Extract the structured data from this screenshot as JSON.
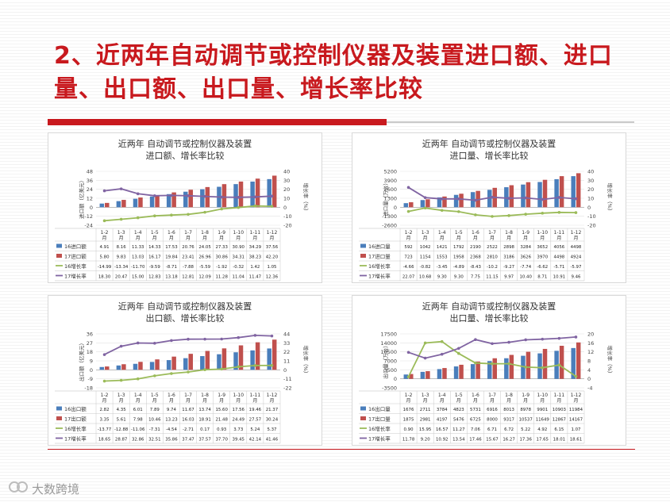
{
  "slide": {
    "title": "2、近两年自动调节或控制仪器及装置进口额、进口量、出口额、出口量、增长率比较",
    "watermark": "大数跨境"
  },
  "colors": {
    "series16": "#4a7ebb",
    "series17": "#c0504d",
    "growth16": "#9bbb59",
    "growth17": "#8064a2",
    "accent": "#c8191e"
  },
  "chart_data": [
    {
      "type": "bar",
      "title": [
        "近两年 自动调节或控制仪器及装置",
        "进口额、增长率比较"
      ],
      "ylabel": "进口额（亿美元）",
      "y2label": "增长率（%）",
      "categories": [
        "1-2月",
        "1-3月",
        "1-4月",
        "1-5月",
        "1-6月",
        "1-7月",
        "1-8月",
        "1-9月",
        "1-10月",
        "1-11月",
        "1-12月"
      ],
      "ylim": [
        -24,
        48
      ],
      "yticks": [
        "48",
        "36",
        "24",
        "12",
        "0",
        "-12",
        "-24"
      ],
      "y2lim": [
        -20,
        40
      ],
      "y2ticks": [
        "40",
        "30",
        "20",
        "10",
        "0",
        "-10",
        "-20"
      ],
      "series": [
        {
          "name": "16进口额",
          "kind": "bar",
          "values": [
            4.91,
            8.16,
            11.33,
            14.33,
            17.53,
            20.76,
            24.05,
            27.33,
            30.9,
            34.29,
            37.56
          ],
          "labels": [
            "4.91",
            "8.16",
            "11.33",
            "14.33",
            "17.53",
            "20.76",
            "24.05",
            "27.33",
            "30.90",
            "34.29",
            "37.56"
          ]
        },
        {
          "name": "17进口额",
          "kind": "bar",
          "values": [
            5.8,
            9.83,
            13.03,
            16.17,
            19.84,
            23.41,
            26.96,
            30.86,
            34.31,
            38.23,
            42.2
          ],
          "labels": [
            "5.80",
            "9.83",
            "13.03",
            "16.17",
            "19.84",
            "23.41",
            "26.96",
            "30.86",
            "34.31",
            "38.23",
            "42.20"
          ]
        },
        {
          "name": "16增长率",
          "kind": "line",
          "values": [
            -14.99,
            -13.34,
            -11.7,
            -9.59,
            -8.71,
            -7.88,
            -5.59,
            -1.92,
            -0.32,
            1.42,
            1.05
          ],
          "labels": [
            "-14.99",
            "-13.34",
            "-11.70",
            "-9.59",
            "-8.71",
            "-7.88",
            "-5.59",
            "-1.92",
            "-0.32",
            "1.42",
            "1.05"
          ]
        },
        {
          "name": "17增长率",
          "kind": "line",
          "values": [
            18.3,
            20.47,
            15.0,
            12.83,
            13.18,
            12.81,
            12.09,
            11.28,
            11.04,
            11.47,
            12.36
          ],
          "labels": [
            "18.30",
            "20.47",
            "15.00",
            "12.83",
            "13.18",
            "12.81",
            "12.09",
            "11.28",
            "11.04",
            "11.47",
            "12.36"
          ]
        }
      ]
    },
    {
      "type": "bar",
      "title": [
        "近两年 自动调节或控制仪器及装置",
        "进口量、增长率比较"
      ],
      "ylabel": "进口量（万台）",
      "y2label": "增长率（%）",
      "categories": [
        "1-2月",
        "1-3月",
        "1-4月",
        "1-5月",
        "1-6月",
        "1-7月",
        "1-8月",
        "1-9月",
        "1-10月",
        "1-11月",
        "1-12月"
      ],
      "ylim": [
        -2600,
        5200
      ],
      "yticks": [
        "5200",
        "3900",
        "2600",
        "1300",
        "0",
        "-1300",
        "-2600"
      ],
      "y2lim": [
        -20,
        40
      ],
      "y2ticks": [
        "40",
        "30",
        "20",
        "10",
        "0",
        "-10",
        "-20"
      ],
      "series": [
        {
          "name": "16进口量",
          "kind": "bar",
          "values": [
            592,
            1042,
            1421,
            1792,
            2190,
            2522,
            2898,
            3284,
            3652,
            4056,
            4498
          ],
          "labels": [
            "592",
            "1042",
            "1421",
            "1792",
            "2190",
            "2522",
            "2898",
            "3284",
            "3652",
            "4056",
            "4498"
          ]
        },
        {
          "name": "17进口量",
          "kind": "bar",
          "values": [
            723,
            1154,
            1553,
            1958,
            2368,
            2810,
            3186,
            3626,
            3970,
            4498,
            4924
          ],
          "labels": [
            "723",
            "1154",
            "1553",
            "1958",
            "2368",
            "2810",
            "3186",
            "3626",
            "3970",
            "4498",
            "4924"
          ]
        },
        {
          "name": "16增长率",
          "kind": "line",
          "values": [
            -4.66,
            -0.82,
            -3.45,
            -4.89,
            -8.43,
            -10.2,
            -9.27,
            -7.74,
            -6.62,
            -5.71,
            -5.97
          ],
          "labels": [
            "-4.66",
            "-0.82",
            "-3.45",
            "-4.89",
            "-8.43",
            "-10.2",
            "-9.27",
            "-7.74",
            "-6.62",
            "-5.71",
            "-5.97"
          ]
        },
        {
          "name": "17增长率",
          "kind": "line",
          "values": [
            22.07,
            10.68,
            9.3,
            9.3,
            7.75,
            11.15,
            9.97,
            10.4,
            8.71,
            10.91,
            9.46
          ],
          "labels": [
            "22.07",
            "10.68",
            "9.30",
            "9.30",
            "7.75",
            "11.15",
            "9.97",
            "10.40",
            "8.71",
            "10.91",
            "9.46"
          ]
        }
      ]
    },
    {
      "type": "bar",
      "title": [
        "近两年 自动调节或控制仪器及装置",
        "出口额、增长率比较"
      ],
      "ylabel": "出口额（亿美元）",
      "y2label": "增长率（%）",
      "categories": [
        "1-2月",
        "1-3月",
        "1-4月",
        "1-5月",
        "1-6月",
        "1-7月",
        "1-8月",
        "1-9月",
        "1-10月",
        "1-11月",
        "1-12月"
      ],
      "ylim": [
        -18,
        36
      ],
      "yticks": [
        "36",
        "27",
        "18",
        "9",
        "0",
        "-9",
        "-18"
      ],
      "y2lim": [
        -22,
        44
      ],
      "y2ticks": [
        "44",
        "33",
        "22",
        "11",
        "0",
        "-11",
        "-22"
      ],
      "series": [
        {
          "name": "16出口额",
          "kind": "bar",
          "values": [
            2.82,
            4.35,
            6.01,
            7.89,
            9.74,
            11.67,
            13.74,
            15.6,
            17.56,
            19.46,
            21.37
          ],
          "labels": [
            "2.82",
            "4.35",
            "6.01",
            "7.89",
            "9.74",
            "11.67",
            "13.74",
            "15.60",
            "17.56",
            "19.46",
            "21.37"
          ]
        },
        {
          "name": "17出口额",
          "kind": "bar",
          "values": [
            3.35,
            5.61,
            7.98,
            10.46,
            13.23,
            16.03,
            18.91,
            21.48,
            24.49,
            27.57,
            30.24
          ],
          "labels": [
            "3.35",
            "5.61",
            "7.98",
            "10.46",
            "13.23",
            "16.03",
            "18.91",
            "21.48",
            "24.49",
            "27.57",
            "30.24"
          ]
        },
        {
          "name": "16增长率",
          "kind": "line",
          "values": [
            -13.77,
            -12.88,
            -11.06,
            -7.31,
            -4.54,
            -2.71,
            0.17,
            0.93,
            3.73,
            5.24,
            5.37
          ],
          "labels": [
            "-13.77",
            "-12.88",
            "-11.06",
            "-7.31",
            "-4.54",
            "-2.71",
            "0.17",
            "0.93",
            "3.73",
            "5.24",
            "5.37"
          ]
        },
        {
          "name": "17增长率",
          "kind": "line",
          "values": [
            18.65,
            28.87,
            32.86,
            32.51,
            35.86,
            37.47,
            37.57,
            37.7,
            39.45,
            42.14,
            41.46
          ],
          "labels": [
            "18.65",
            "28.87",
            "32.86",
            "32.51",
            "35.86",
            "37.47",
            "37.57",
            "37.70",
            "39.45",
            "42.14",
            "41.46"
          ]
        }
      ]
    },
    {
      "type": "bar",
      "title": [
        "近两年 自动调节或控制仪器及装置",
        "出口量、增长率比较"
      ],
      "ylabel": "出口量（万台）",
      "y2label": "增长率（%）",
      "categories": [
        "1-2月",
        "1-3月",
        "1-4月",
        "1-5月",
        "1-6月",
        "1-7月",
        "1-8月",
        "1-9月",
        "1-10月",
        "1-11月",
        "1-12月"
      ],
      "ylim": [
        -3500,
        17500
      ],
      "yticks": [
        "17500",
        "14000",
        "10500",
        "7000",
        "3500",
        "0",
        "-3500"
      ],
      "y2lim": [
        -4,
        20
      ],
      "y2ticks": [
        "20",
        "16",
        "12",
        "8",
        "4",
        "0",
        "-4"
      ],
      "series": [
        {
          "name": "16出口量",
          "kind": "bar",
          "values": [
            1676,
            2711,
            3784,
            4823,
            5731,
            6916,
            8013,
            8978,
            9901,
            10903,
            11984
          ],
          "labels": [
            "1676",
            "2711",
            "3784",
            "4823",
            "5731",
            "6916",
            "8013",
            "8978",
            "9901",
            "10903",
            "11984"
          ]
        },
        {
          "name": "17出口量",
          "kind": "bar",
          "values": [
            1875,
            2981,
            4197,
            5476,
            6725,
            8000,
            9317,
            10537,
            11649,
            12867,
            14167
          ],
          "labels": [
            "1875",
            "2981",
            "4197",
            "5476",
            "6725",
            "8000",
            "9317",
            "10537",
            "11649",
            "12867",
            "14167"
          ]
        },
        {
          "name": "16增长率",
          "kind": "line",
          "values": [
            0.9,
            15.95,
            16.57,
            11.27,
            7.06,
            6.71,
            6.72,
            5.22,
            4.92,
            6.15,
            1.07
          ],
          "labels": [
            "0.90",
            "15.95",
            "16.57",
            "11.27",
            "7.06",
            "6.71",
            "6.72",
            "5.22",
            "4.92",
            "6.15",
            "1.07"
          ]
        },
        {
          "name": "17增长率",
          "kind": "line",
          "values": [
            11.78,
            9.2,
            10.92,
            13.54,
            17.46,
            15.67,
            16.27,
            17.36,
            17.65,
            18.01,
            18.61
          ],
          "labels": [
            "11.78",
            "9.20",
            "10.92",
            "13.54",
            "17.46",
            "15.67",
            "16.27",
            "17.36",
            "17.65",
            "18.01",
            "18.61"
          ]
        }
      ]
    }
  ]
}
